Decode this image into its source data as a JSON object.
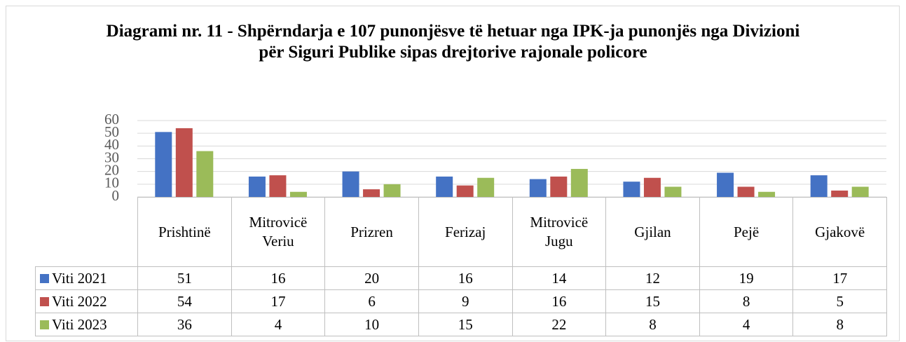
{
  "chart_data": {
    "type": "bar",
    "title": "Diagrami nr. 11 - Shpërndarja e 107 punonjësve të hetuar nga IPK-ja punonjës nga Divizioni për Siguri Publike sipas drejtorive rajonale policore",
    "categories": [
      "Prishtinë",
      "Mitrovicë Veriu",
      "Prizren",
      "Ferizaj",
      "Mitrovicë Jugu",
      "Gjilan",
      "Pejë",
      "Gjakovë"
    ],
    "series": [
      {
        "name": "Viti 2021",
        "color": "#4472c4",
        "values": [
          51,
          16,
          20,
          16,
          14,
          12,
          19,
          17
        ]
      },
      {
        "name": "Viti 2022",
        "color": "#c0504d",
        "values": [
          54,
          17,
          6,
          9,
          16,
          15,
          8,
          5
        ]
      },
      {
        "name": "Viti 2023",
        "color": "#9bbb59",
        "values": [
          36,
          4,
          10,
          15,
          22,
          8,
          4,
          8
        ]
      }
    ],
    "ylim": [
      0,
      60
    ],
    "yticks": [
      0,
      10,
      20,
      30,
      40,
      50,
      60
    ],
    "grid": true
  }
}
